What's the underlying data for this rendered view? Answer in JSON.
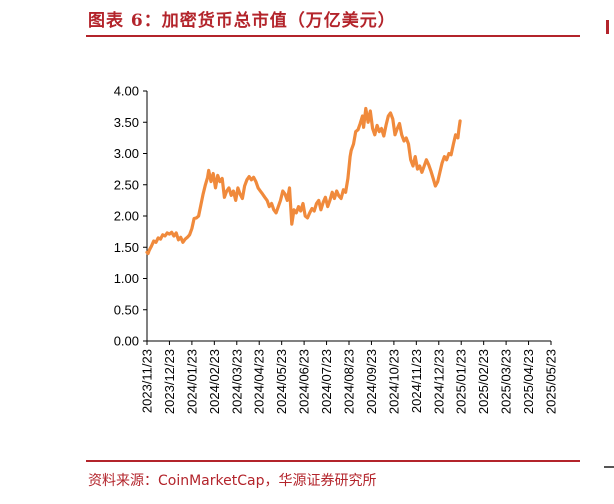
{
  "header": {
    "figure_title": "图表 6：加密货币总市值（万亿美元）"
  },
  "footer": {
    "source": "资料来源：CoinMarketCap，华源证券研究所"
  },
  "chart_data": {
    "type": "line",
    "title": "加密货币总市值（万亿美元）",
    "xlabel": "",
    "ylabel": "",
    "ylim": [
      0,
      4
    ],
    "yticks": [
      "0.00",
      "0.50",
      "1.00",
      "1.50",
      "2.00",
      "2.50",
      "3.00",
      "3.50",
      "4.00"
    ],
    "xticks": [
      "2023/11/23",
      "2023/12/23",
      "2024/01/23",
      "2024/02/23",
      "2024/03/23",
      "2024/04/23",
      "2024/05/23",
      "2024/06/23",
      "2024/07/23",
      "2024/08/23",
      "2024/09/23",
      "2024/10/23",
      "2024/11/23",
      "2024/12/23",
      "2025/01/23",
      "2025/02/23",
      "2025/03/23",
      "2025/04/23",
      "2025/05/23"
    ],
    "line_color": "#f08a3c",
    "grid": false,
    "legend": "none",
    "series": [
      {
        "values": [
          [
            0.0,
            1.42
          ],
          [
            0.05,
            1.4
          ],
          [
            0.1,
            1.45
          ],
          [
            0.2,
            1.52
          ],
          [
            0.3,
            1.6
          ],
          [
            0.4,
            1.58
          ],
          [
            0.5,
            1.65
          ],
          [
            0.6,
            1.63
          ],
          [
            0.7,
            1.7
          ],
          [
            0.8,
            1.68
          ],
          [
            0.9,
            1.73
          ],
          [
            1.0,
            1.71
          ],
          [
            1.1,
            1.74
          ],
          [
            1.2,
            1.68
          ],
          [
            1.3,
            1.73
          ],
          [
            1.4,
            1.62
          ],
          [
            1.5,
            1.66
          ],
          [
            1.6,
            1.58
          ],
          [
            1.7,
            1.63
          ],
          [
            1.8,
            1.66
          ],
          [
            1.9,
            1.7
          ],
          [
            2.0,
            1.8
          ],
          [
            2.1,
            1.96
          ],
          [
            2.2,
            1.97
          ],
          [
            2.3,
            2.0
          ],
          [
            2.4,
            2.18
          ],
          [
            2.5,
            2.35
          ],
          [
            2.6,
            2.5
          ],
          [
            2.7,
            2.62
          ],
          [
            2.75,
            2.73
          ],
          [
            2.85,
            2.55
          ],
          [
            2.95,
            2.68
          ],
          [
            3.05,
            2.45
          ],
          [
            3.15,
            2.65
          ],
          [
            3.25,
            2.55
          ],
          [
            3.35,
            2.6
          ],
          [
            3.45,
            2.3
          ],
          [
            3.55,
            2.4
          ],
          [
            3.65,
            2.45
          ],
          [
            3.75,
            2.33
          ],
          [
            3.85,
            2.4
          ],
          [
            3.95,
            2.25
          ],
          [
            4.05,
            2.45
          ],
          [
            4.15,
            2.35
          ],
          [
            4.25,
            2.28
          ],
          [
            4.35,
            2.48
          ],
          [
            4.45,
            2.58
          ],
          [
            4.55,
            2.63
          ],
          [
            4.65,
            2.58
          ],
          [
            4.75,
            2.62
          ],
          [
            4.85,
            2.55
          ],
          [
            4.95,
            2.45
          ],
          [
            5.05,
            2.4
          ],
          [
            5.15,
            2.35
          ],
          [
            5.25,
            2.3
          ],
          [
            5.35,
            2.25
          ],
          [
            5.45,
            2.15
          ],
          [
            5.55,
            2.2
          ],
          [
            5.65,
            2.1
          ],
          [
            5.75,
            2.05
          ],
          [
            5.85,
            2.15
          ],
          [
            5.95,
            2.25
          ],
          [
            6.05,
            2.4
          ],
          [
            6.15,
            2.35
          ],
          [
            6.25,
            2.25
          ],
          [
            6.35,
            2.45
          ],
          [
            6.45,
            1.87
          ],
          [
            6.55,
            2.1
          ],
          [
            6.65,
            2.05
          ],
          [
            6.75,
            2.15
          ],
          [
            6.85,
            2.08
          ],
          [
            6.95,
            2.2
          ],
          [
            7.05,
            2.0
          ],
          [
            7.15,
            1.97
          ],
          [
            7.25,
            2.05
          ],
          [
            7.35,
            2.12
          ],
          [
            7.45,
            2.08
          ],
          [
            7.55,
            2.2
          ],
          [
            7.65,
            2.25
          ],
          [
            7.75,
            2.1
          ],
          [
            7.85,
            2.22
          ],
          [
            7.95,
            2.3
          ],
          [
            8.05,
            2.15
          ],
          [
            8.15,
            2.25
          ],
          [
            8.25,
            2.38
          ],
          [
            8.35,
            2.28
          ],
          [
            8.45,
            2.4
          ],
          [
            8.55,
            2.32
          ],
          [
            8.65,
            2.28
          ],
          [
            8.75,
            2.42
          ],
          [
            8.85,
            2.38
          ],
          [
            8.95,
            2.6
          ],
          [
            9.05,
            2.95
          ],
          [
            9.1,
            3.05
          ],
          [
            9.2,
            3.15
          ],
          [
            9.3,
            3.35
          ],
          [
            9.4,
            3.38
          ],
          [
            9.5,
            3.48
          ],
          [
            9.6,
            3.6
          ],
          [
            9.65,
            3.42
          ],
          [
            9.75,
            3.72
          ],
          [
            9.85,
            3.5
          ],
          [
            9.95,
            3.68
          ],
          [
            10.05,
            3.4
          ],
          [
            10.15,
            3.3
          ],
          [
            10.25,
            3.45
          ],
          [
            10.35,
            3.35
          ],
          [
            10.45,
            3.4
          ],
          [
            10.55,
            3.28
          ],
          [
            10.65,
            3.45
          ],
          [
            10.75,
            3.6
          ],
          [
            10.85,
            3.65
          ],
          [
            10.95,
            3.55
          ],
          [
            11.05,
            3.3
          ],
          [
            11.15,
            3.4
          ],
          [
            11.25,
            3.48
          ],
          [
            11.35,
            3.3
          ],
          [
            11.45,
            3.2
          ],
          [
            11.55,
            3.25
          ],
          [
            11.65,
            3.15
          ],
          [
            11.75,
            2.9
          ],
          [
            11.85,
            2.8
          ],
          [
            11.95,
            2.95
          ],
          [
            12.05,
            2.75
          ],
          [
            12.15,
            2.8
          ],
          [
            12.25,
            2.7
          ],
          [
            12.35,
            2.8
          ],
          [
            12.45,
            2.9
          ],
          [
            12.55,
            2.82
          ],
          [
            12.65,
            2.72
          ],
          [
            12.75,
            2.6
          ],
          [
            12.85,
            2.48
          ],
          [
            12.95,
            2.55
          ],
          [
            13.05,
            2.7
          ],
          [
            13.15,
            2.85
          ],
          [
            13.25,
            2.95
          ],
          [
            13.35,
            2.9
          ],
          [
            13.45,
            3.0
          ],
          [
            13.55,
            2.98
          ],
          [
            13.65,
            3.15
          ],
          [
            13.75,
            3.3
          ],
          [
            13.85,
            3.25
          ],
          [
            13.9,
            3.4
          ],
          [
            13.95,
            3.52
          ]
        ]
      }
    ]
  }
}
